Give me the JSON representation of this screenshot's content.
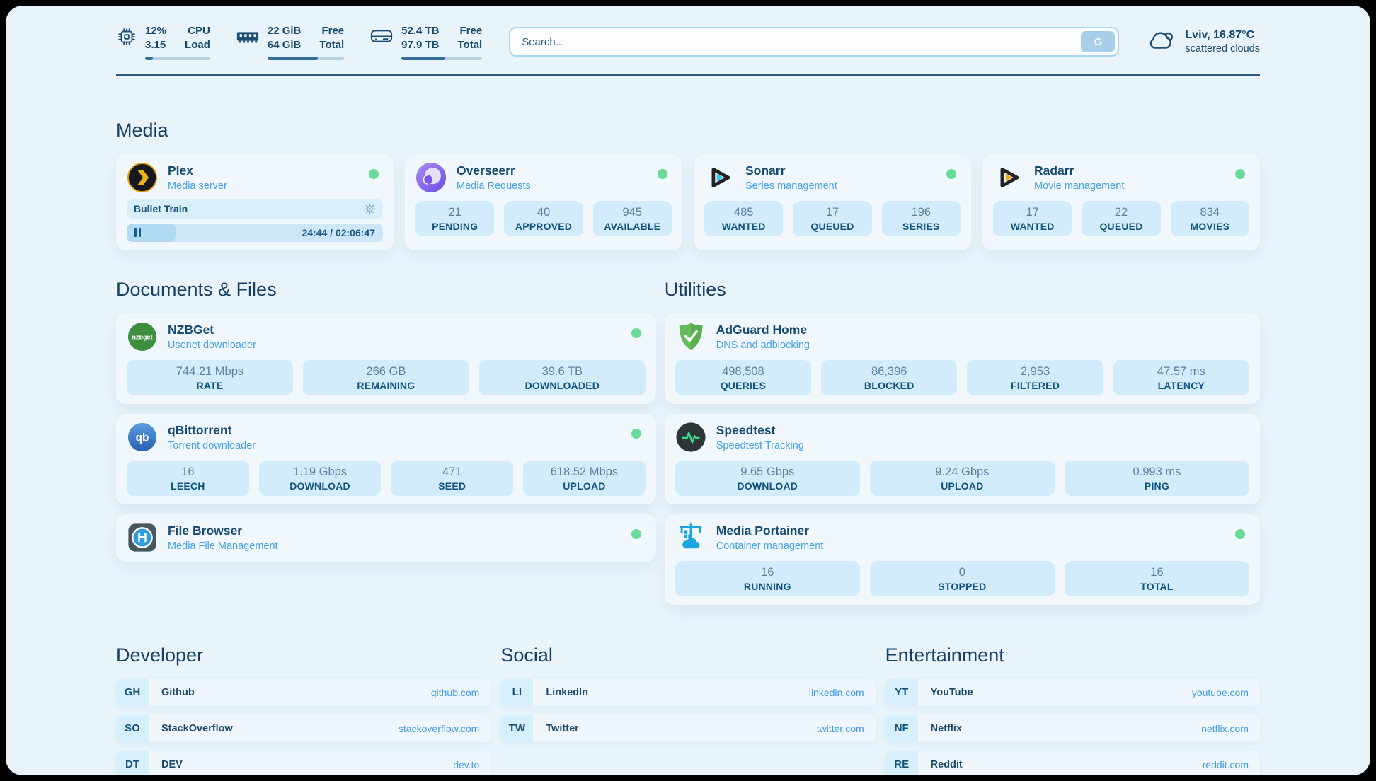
{
  "topbar": {
    "widgets": [
      {
        "line1": "12%",
        "line2": "3.15",
        "label1": "CPU",
        "label2": "Load",
        "progress": 12
      },
      {
        "line1": "22 GiB",
        "line2": "64 GiB",
        "label1": "Free",
        "label2": "Total",
        "progress": 66
      },
      {
        "line1": "52.4 TB",
        "line2": "97.9 TB",
        "label1": "Free",
        "label2": "Total",
        "progress": 54
      }
    ],
    "search": {
      "placeholder": "Search...",
      "button_label": "G"
    },
    "weather": {
      "location": "Lviv, 16.87°C",
      "condition": "scattered clouds"
    }
  },
  "media": {
    "heading": "Media",
    "plex": {
      "name": "Plex",
      "description": "Media server",
      "now_playing": "Bullet Train",
      "time": "24:44 / 02:06:47",
      "progress": 19
    },
    "overseerr": {
      "name": "Overseerr",
      "description": "Media Requests",
      "stats": [
        {
          "value": "21",
          "label": "PENDING"
        },
        {
          "value": "40",
          "label": "APPROVED"
        },
        {
          "value": "945",
          "label": "AVAILABLE"
        }
      ]
    },
    "sonarr": {
      "name": "Sonarr",
      "description": "Series management",
      "stats": [
        {
          "value": "485",
          "label": "WANTED"
        },
        {
          "value": "17",
          "label": "QUEUED"
        },
        {
          "value": "196",
          "label": "SERIES"
        }
      ]
    },
    "radarr": {
      "name": "Radarr",
      "description": "Movie management",
      "stats": [
        {
          "value": "17",
          "label": "WANTED"
        },
        {
          "value": "22",
          "label": "QUEUED"
        },
        {
          "value": "834",
          "label": "MOVIES"
        }
      ]
    }
  },
  "documents": {
    "heading": "Documents & Files",
    "nzbget": {
      "name": "NZBGet",
      "description": "Usenet downloader",
      "stats": [
        {
          "value": "744.21 Mbps",
          "label": "RATE"
        },
        {
          "value": "266 GB",
          "label": "REMAINING"
        },
        {
          "value": "39.6 TB",
          "label": "DOWNLOADED"
        }
      ]
    },
    "qbittorrent": {
      "name": "qBittorrent",
      "description": "Torrent downloader",
      "stats": [
        {
          "value": "16",
          "label": "LEECH"
        },
        {
          "value": "1.19 Gbps",
          "label": "DOWNLOAD"
        },
        {
          "value": "471",
          "label": "SEED"
        },
        {
          "value": "618.52 Mbps",
          "label": "UPLOAD"
        }
      ]
    },
    "filebrowser": {
      "name": "File Browser",
      "description": "Media File Management"
    }
  },
  "utilities": {
    "heading": "Utilities",
    "adguard": {
      "name": "AdGuard Home",
      "description": "DNS and adblocking",
      "stats": [
        {
          "value": "498,508",
          "label": "QUERIES"
        },
        {
          "value": "86,396",
          "label": "BLOCKED"
        },
        {
          "value": "2,953",
          "label": "FILTERED"
        },
        {
          "value": "47.57 ms",
          "label": "LATENCY"
        }
      ]
    },
    "speedtest": {
      "name": "Speedtest",
      "description": "Speedtest Tracking",
      "stats": [
        {
          "value": "9.65 Gbps",
          "label": "DOWNLOAD"
        },
        {
          "value": "9.24 Gbps",
          "label": "UPLOAD"
        },
        {
          "value": "0.993 ms",
          "label": "PING"
        }
      ]
    },
    "portainer": {
      "name": "Media Portainer",
      "description": "Container management",
      "stats": [
        {
          "value": "16",
          "label": "RUNNING"
        },
        {
          "value": "0",
          "label": "STOPPED"
        },
        {
          "value": "16",
          "label": "TOTAL"
        }
      ]
    }
  },
  "bookmarks": [
    {
      "heading": "Developer",
      "links": [
        {
          "abbr": "GH",
          "name": "Github",
          "url": "github.com"
        },
        {
          "abbr": "SO",
          "name": "StackOverflow",
          "url": "stackoverflow.com"
        },
        {
          "abbr": "DT",
          "name": "DEV",
          "url": "dev.to"
        }
      ]
    },
    {
      "heading": "Social",
      "links": [
        {
          "abbr": "LI",
          "name": "LinkedIn",
          "url": "linkedin.com"
        },
        {
          "abbr": "TW",
          "name": "Twitter",
          "url": "twitter.com"
        }
      ]
    },
    {
      "heading": "Entertainment",
      "links": [
        {
          "abbr": "YT",
          "name": "YouTube",
          "url": "youtube.com"
        },
        {
          "abbr": "NF",
          "name": "Netflix",
          "url": "netflix.com"
        },
        {
          "abbr": "RE",
          "name": "Reddit",
          "url": "reddit.com"
        }
      ]
    }
  ],
  "colors": {
    "page_bg": "#e9f3fa",
    "card_bg": "#f0f8fd",
    "stat_bg": "#d2ecfb",
    "accent_navy": "#1d4e74",
    "subtitle_blue": "#47a1e8",
    "online_green": "#69da98"
  }
}
